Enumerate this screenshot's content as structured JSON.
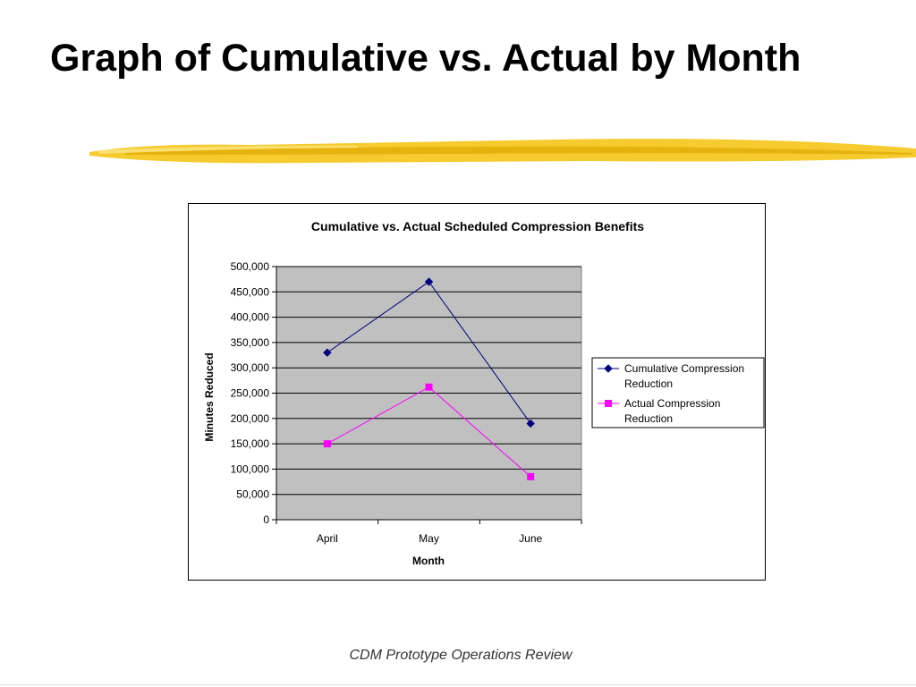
{
  "slide": {
    "title": "Graph of Cumulative vs. Actual by Month",
    "footer": "CDM Prototype Operations Review",
    "accent_color": "#f5c518"
  },
  "chart_data": {
    "type": "line",
    "title": "Cumulative vs. Actual Scheduled Compression Benefits",
    "xlabel": "Month",
    "ylabel": "Minutes Reduced",
    "categories": [
      "April",
      "May",
      "June"
    ],
    "ylim": [
      0,
      500000
    ],
    "yticks": [
      0,
      50000,
      100000,
      150000,
      200000,
      250000,
      300000,
      350000,
      400000,
      450000,
      500000
    ],
    "ytick_labels": [
      "0",
      "50,000",
      "100,000",
      "150,000",
      "200,000",
      "250,000",
      "300,000",
      "350,000",
      "400,000",
      "450,000",
      "500,000"
    ],
    "grid": true,
    "plot_background": "#c0c0c0",
    "legend_position": "right",
    "series": [
      {
        "name": "Cumulative Compression Reduction",
        "legend_lines": [
          "Cumulative Compression",
          "Reduction"
        ],
        "values": [
          330000,
          470000,
          190000
        ],
        "color": "#000080",
        "marker": "diamond"
      },
      {
        "name": "Actual Compression Reduction",
        "legend_lines": [
          "Actual Compression",
          "Reduction"
        ],
        "values": [
          150000,
          262000,
          85000
        ],
        "color": "#ff00ff",
        "marker": "square"
      }
    ]
  }
}
